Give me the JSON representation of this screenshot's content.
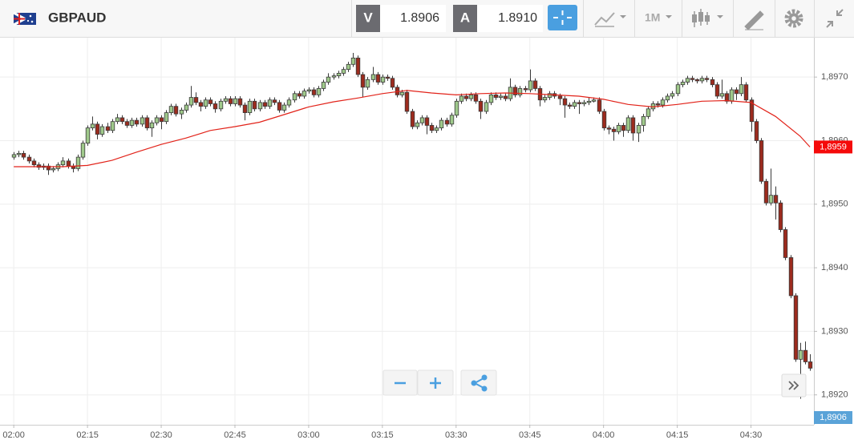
{
  "header": {
    "symbol": "GBPAUD",
    "bid_letter": "V",
    "bid": "1.8906",
    "ask_letter": "A",
    "ask": "1.8910",
    "timeframe": "1M"
  },
  "chart_data": {
    "type": "candlestick",
    "up_color": "#9fc98b",
    "down_color": "#9c2b1e",
    "outline_color": "#3a3a3a",
    "xlim": [
      -2.8,
      162.8
    ],
    "xticks": [
      {
        "value": 0,
        "label": "02:00"
      },
      {
        "value": 15,
        "label": "02:15"
      },
      {
        "value": 30,
        "label": "02:30"
      },
      {
        "value": 45,
        "label": "02:45"
      },
      {
        "value": 60,
        "label": "03:00"
      },
      {
        "value": 75,
        "label": "03:15"
      },
      {
        "value": 90,
        "label": "03:30"
      },
      {
        "value": 105,
        "label": "03:45"
      },
      {
        "value": 120,
        "label": "04:00"
      },
      {
        "value": 135,
        "label": "04:15"
      },
      {
        "value": 150,
        "label": "04:30"
      }
    ],
    "ylim": [
      1.89153,
      1.89762
    ],
    "yticks": [
      {
        "value": 1.892,
        "label": "1,8920"
      },
      {
        "value": 1.893,
        "label": "1,8930"
      },
      {
        "value": 1.894,
        "label": "1,8940"
      },
      {
        "value": 1.895,
        "label": "1,8950"
      },
      {
        "value": 1.896,
        "label": "1,8960"
      },
      {
        "value": 1.897,
        "label": "1,8970"
      }
    ],
    "grid": true,
    "ohlc": [
      [
        1.89574,
        1.89582,
        1.8957,
        1.89578
      ],
      [
        1.89578,
        1.89584,
        1.89574,
        1.8958
      ],
      [
        1.8958,
        1.89584,
        1.8957,
        1.89574
      ],
      [
        1.89574,
        1.89578,
        1.89564,
        1.89568
      ],
      [
        1.89568,
        1.89572,
        1.89558,
        1.89562
      ],
      [
        1.89562,
        1.89566,
        1.89554,
        1.89558
      ],
      [
        1.89558,
        1.89564,
        1.89554,
        1.8956
      ],
      [
        1.8956,
        1.89564,
        1.89546,
        1.89554
      ],
      [
        1.89554,
        1.8956,
        1.8955,
        1.89556
      ],
      [
        1.89556,
        1.89566,
        1.89552,
        1.89562
      ],
      [
        1.89562,
        1.89574,
        1.89558,
        1.89568
      ],
      [
        1.89568,
        1.89572,
        1.89556,
        1.8956
      ],
      [
        1.8956,
        1.89564,
        1.8955,
        1.89556
      ],
      [
        1.89556,
        1.89578,
        1.89552,
        1.89574
      ],
      [
        1.89574,
        1.896,
        1.8957,
        1.89596
      ],
      [
        1.89596,
        1.89624,
        1.89592,
        1.8962
      ],
      [
        1.8962,
        1.89638,
        1.89616,
        1.89626
      ],
      [
        1.89626,
        1.8963,
        1.89602,
        1.8961
      ],
      [
        1.8961,
        1.89626,
        1.89606,
        1.89622
      ],
      [
        1.89622,
        1.89628,
        1.89612,
        1.89616
      ],
      [
        1.89616,
        1.89634,
        1.89612,
        1.8963
      ],
      [
        1.8963,
        1.89642,
        1.89626,
        1.89636
      ],
      [
        1.89636,
        1.8964,
        1.89626,
        1.8963
      ],
      [
        1.8963,
        1.89634,
        1.8962,
        1.89624
      ],
      [
        1.89624,
        1.89636,
        1.8962,
        1.89632
      ],
      [
        1.89632,
        1.89636,
        1.89622,
        1.89626
      ],
      [
        1.89626,
        1.8964,
        1.89622,
        1.89636
      ],
      [
        1.89636,
        1.8964,
        1.89616,
        1.8962
      ],
      [
        1.8962,
        1.89632,
        1.89606,
        1.89628
      ],
      [
        1.89628,
        1.8964,
        1.89624,
        1.89636
      ],
      [
        1.89636,
        1.8964,
        1.89618,
        1.8963
      ],
      [
        1.8963,
        1.89648,
        1.89626,
        1.89644
      ],
      [
        1.89644,
        1.89658,
        1.8964,
        1.89654
      ],
      [
        1.89654,
        1.89658,
        1.89638,
        1.89642
      ],
      [
        1.89642,
        1.89652,
        1.89634,
        1.89648
      ],
      [
        1.89648,
        1.8966,
        1.89644,
        1.89656
      ],
      [
        1.89656,
        1.89686,
        1.89652,
        1.89668
      ],
      [
        1.89668,
        1.89676,
        1.89656,
        1.8966
      ],
      [
        1.8966,
        1.89664,
        1.89646,
        1.89654
      ],
      [
        1.89654,
        1.89668,
        1.8965,
        1.89664
      ],
      [
        1.89664,
        1.89668,
        1.89654,
        1.89658
      ],
      [
        1.89658,
        1.89662,
        1.89644,
        1.8965
      ],
      [
        1.8965,
        1.89666,
        1.89646,
        1.89662
      ],
      [
        1.89662,
        1.8967,
        1.89658,
        1.89666
      ],
      [
        1.89666,
        1.8967,
        1.89654,
        1.89658
      ],
      [
        1.89658,
        1.8967,
        1.89654,
        1.89666
      ],
      [
        1.89666,
        1.8967,
        1.89652,
        1.89656
      ],
      [
        1.89656,
        1.8966,
        1.89632,
        1.89644
      ],
      [
        1.89644,
        1.89666,
        1.8964,
        1.89662
      ],
      [
        1.89662,
        1.89666,
        1.89646,
        1.8965
      ],
      [
        1.8965,
        1.89664,
        1.89646,
        1.8966
      ],
      [
        1.8966,
        1.89664,
        1.8965,
        1.89654
      ],
      [
        1.89654,
        1.89668,
        1.8965,
        1.89664
      ],
      [
        1.89664,
        1.89668,
        1.89656,
        1.8966
      ],
      [
        1.8966,
        1.89664,
        1.89644,
        1.89648
      ],
      [
        1.89648,
        1.8966,
        1.89644,
        1.89656
      ],
      [
        1.89656,
        1.89668,
        1.89652,
        1.89664
      ],
      [
        1.89664,
        1.89678,
        1.8966,
        1.89674
      ],
      [
        1.89674,
        1.89678,
        1.89666,
        1.8967
      ],
      [
        1.8967,
        1.89682,
        1.89666,
        1.89678
      ],
      [
        1.89678,
        1.89684,
        1.89674,
        1.8968
      ],
      [
        1.8968,
        1.89684,
        1.89668,
        1.89672
      ],
      [
        1.89672,
        1.89686,
        1.89668,
        1.89682
      ],
      [
        1.89682,
        1.89696,
        1.89678,
        1.89692
      ],
      [
        1.89692,
        1.89706,
        1.89688,
        1.897
      ],
      [
        1.897,
        1.89706,
        1.89696,
        1.89702
      ],
      [
        1.89702,
        1.8971,
        1.89698,
        1.89706
      ],
      [
        1.89706,
        1.89716,
        1.89702,
        1.89712
      ],
      [
        1.89712,
        1.89724,
        1.89708,
        1.8972
      ],
      [
        1.8972,
        1.89738,
        1.89716,
        1.8973
      ],
      [
        1.8973,
        1.89734,
        1.897,
        1.89704
      ],
      [
        1.89704,
        1.89708,
        1.89668,
        1.89684
      ],
      [
        1.89684,
        1.897,
        1.8968,
        1.89696
      ],
      [
        1.89696,
        1.89716,
        1.89692,
        1.89704
      ],
      [
        1.89704,
        1.89708,
        1.89688,
        1.89692
      ],
      [
        1.89692,
        1.89704,
        1.89688,
        1.897
      ],
      [
        1.897,
        1.89704,
        1.89694,
        1.89698
      ],
      [
        1.89698,
        1.89702,
        1.8968,
        1.89684
      ],
      [
        1.89684,
        1.89688,
        1.89668,
        1.89672
      ],
      [
        1.89672,
        1.8968,
        1.89668,
        1.89676
      ],
      [
        1.89676,
        1.8968,
        1.89642,
        1.89646
      ],
      [
        1.89646,
        1.8965,
        1.89618,
        1.89622
      ],
      [
        1.89622,
        1.89632,
        1.89618,
        1.89628
      ],
      [
        1.89628,
        1.8964,
        1.89624,
        1.89636
      ],
      [
        1.89636,
        1.8964,
        1.8961,
        1.89624
      ],
      [
        1.89624,
        1.89628,
        1.89612,
        1.89616
      ],
      [
        1.89616,
        1.89624,
        1.89612,
        1.8962
      ],
      [
        1.8962,
        1.89636,
        1.89616,
        1.89632
      ],
      [
        1.89632,
        1.89636,
        1.89622,
        1.89626
      ],
      [
        1.89626,
        1.89644,
        1.89622,
        1.8964
      ],
      [
        1.8964,
        1.89666,
        1.89636,
        1.89662
      ],
      [
        1.89662,
        1.89674,
        1.89658,
        1.8967
      ],
      [
        1.8967,
        1.89674,
        1.89662,
        1.89666
      ],
      [
        1.89666,
        1.89676,
        1.89662,
        1.89672
      ],
      [
        1.89672,
        1.89676,
        1.89658,
        1.89662
      ],
      [
        1.89662,
        1.89666,
        1.89634,
        1.89646
      ],
      [
        1.89646,
        1.89664,
        1.89642,
        1.8966
      ],
      [
        1.8966,
        1.89676,
        1.89656,
        1.89672
      ],
      [
        1.89672,
        1.89676,
        1.89664,
        1.89668
      ],
      [
        1.89668,
        1.89674,
        1.89664,
        1.8967
      ],
      [
        1.8967,
        1.89674,
        1.89662,
        1.89666
      ],
      [
        1.89666,
        1.89698,
        1.89662,
        1.89684
      ],
      [
        1.89684,
        1.89688,
        1.89668,
        1.89672
      ],
      [
        1.89672,
        1.89686,
        1.89668,
        1.89682
      ],
      [
        1.89682,
        1.89686,
        1.89676,
        1.8968
      ],
      [
        1.8968,
        1.89712,
        1.89676,
        1.89694
      ],
      [
        1.89694,
        1.89698,
        1.89678,
        1.89682
      ],
      [
        1.89682,
        1.89686,
        1.89654,
        1.89664
      ],
      [
        1.89664,
        1.89672,
        1.8966,
        1.89668
      ],
      [
        1.89668,
        1.89678,
        1.89664,
        1.89674
      ],
      [
        1.89674,
        1.89678,
        1.89666,
        1.8967
      ],
      [
        1.8967,
        1.89674,
        1.89656,
        1.89666
      ],
      [
        1.89666,
        1.8967,
        1.89636,
        1.89656
      ],
      [
        1.89656,
        1.8966,
        1.8965,
        1.89654
      ],
      [
        1.89654,
        1.89664,
        1.8965,
        1.8966
      ],
      [
        1.8966,
        1.89664,
        1.89642,
        1.89658
      ],
      [
        1.89658,
        1.89664,
        1.89654,
        1.8966
      ],
      [
        1.8966,
        1.89668,
        1.89656,
        1.89662
      ],
      [
        1.89662,
        1.89668,
        1.8966,
        1.89664
      ],
      [
        1.89664,
        1.89668,
        1.89642,
        1.89646
      ],
      [
        1.89646,
        1.8965,
        1.89616,
        1.8962
      ],
      [
        1.8962,
        1.89624,
        1.8961,
        1.89618
      ],
      [
        1.89618,
        1.89622,
        1.896,
        1.89614
      ],
      [
        1.89614,
        1.89628,
        1.8961,
        1.89624
      ],
      [
        1.89624,
        1.89628,
        1.89606,
        1.89616
      ],
      [
        1.89616,
        1.8964,
        1.89612,
        1.89636
      ],
      [
        1.89636,
        1.8964,
        1.896,
        1.89612
      ],
      [
        1.89612,
        1.89628,
        1.89598,
        1.89624
      ],
      [
        1.89624,
        1.89642,
        1.89614,
        1.89638
      ],
      [
        1.89638,
        1.89654,
        1.89634,
        1.8965
      ],
      [
        1.8965,
        1.89662,
        1.89646,
        1.89658
      ],
      [
        1.89658,
        1.89662,
        1.89652,
        1.89656
      ],
      [
        1.89656,
        1.89668,
        1.89652,
        1.89664
      ],
      [
        1.89664,
        1.89674,
        1.8966,
        1.8967
      ],
      [
        1.8967,
        1.89678,
        1.89666,
        1.89674
      ],
      [
        1.89674,
        1.89692,
        1.8967,
        1.89688
      ],
      [
        1.89688,
        1.89696,
        1.89684,
        1.89692
      ],
      [
        1.89692,
        1.89702,
        1.89688,
        1.89698
      ],
      [
        1.89698,
        1.89702,
        1.89692,
        1.89696
      ],
      [
        1.89696,
        1.89698,
        1.8969,
        1.89694
      ],
      [
        1.89694,
        1.89702,
        1.8969,
        1.89698
      ],
      [
        1.89698,
        1.89702,
        1.89692,
        1.89696
      ],
      [
        1.89696,
        1.897,
        1.89684,
        1.89688
      ],
      [
        1.89688,
        1.89692,
        1.89666,
        1.8967
      ],
      [
        1.8967,
        1.89696,
        1.89666,
        1.89674
      ],
      [
        1.89674,
        1.89678,
        1.89658,
        1.89662
      ],
      [
        1.89662,
        1.89684,
        1.89658,
        1.8968
      ],
      [
        1.8968,
        1.89684,
        1.89664,
        1.89674
      ],
      [
        1.89674,
        1.897,
        1.8967,
        1.89688
      ],
      [
        1.89688,
        1.89692,
        1.8966,
        1.89664
      ],
      [
        1.89664,
        1.89668,
        1.89614,
        1.8963
      ],
      [
        1.8963,
        1.89634,
        1.89596,
        1.896
      ],
      [
        1.896,
        1.89604,
        1.89532,
        1.89536
      ],
      [
        1.89536,
        1.8954,
        1.89498,
        1.89502
      ],
      [
        1.89502,
        1.89556,
        1.89498,
        1.89514
      ],
      [
        1.89514,
        1.89528,
        1.89476,
        1.89502
      ],
      [
        1.89502,
        1.89506,
        1.89456,
        1.8946
      ],
      [
        1.8946,
        1.89464,
        1.89412,
        1.89416
      ],
      [
        1.89416,
        1.8942,
        1.89352,
        1.89356
      ],
      [
        1.89356,
        1.8936,
        1.89252,
        1.89256
      ],
      [
        1.89256,
        1.89282,
        1.89194,
        1.8927
      ],
      [
        1.8927,
        1.89284,
        1.89248,
        1.89252
      ],
      [
        1.89252,
        1.89264,
        1.89238,
        1.89242
      ]
    ],
    "ma": {
      "color": "#e2231a",
      "x": [
        0,
        10,
        15,
        20,
        25,
        30,
        35,
        40,
        45,
        50,
        55,
        60,
        65,
        70,
        75,
        80,
        85,
        90,
        95,
        100,
        105,
        110,
        115,
        120,
        125,
        130,
        135,
        140,
        145,
        150,
        155,
        160,
        162
      ],
      "values": [
        1.89559,
        1.89559,
        1.89561,
        1.89569,
        1.89582,
        1.89594,
        1.89604,
        1.89616,
        1.89622,
        1.89629,
        1.89641,
        1.89653,
        1.89661,
        1.89667,
        1.89674,
        1.89679,
        1.89675,
        1.89672,
        1.89674,
        1.89675,
        1.89674,
        1.89672,
        1.8967,
        1.89665,
        1.89657,
        1.89653,
        1.89657,
        1.89662,
        1.89663,
        1.8966,
        1.89638,
        1.89607,
        1.8959
      ]
    },
    "price_tags": [
      {
        "value": 1.8959,
        "label": "1,8959",
        "color": "#f50a0a"
      },
      {
        "value": 1.8906,
        "label": "1,8906",
        "color": "#5aa3d8"
      }
    ]
  }
}
